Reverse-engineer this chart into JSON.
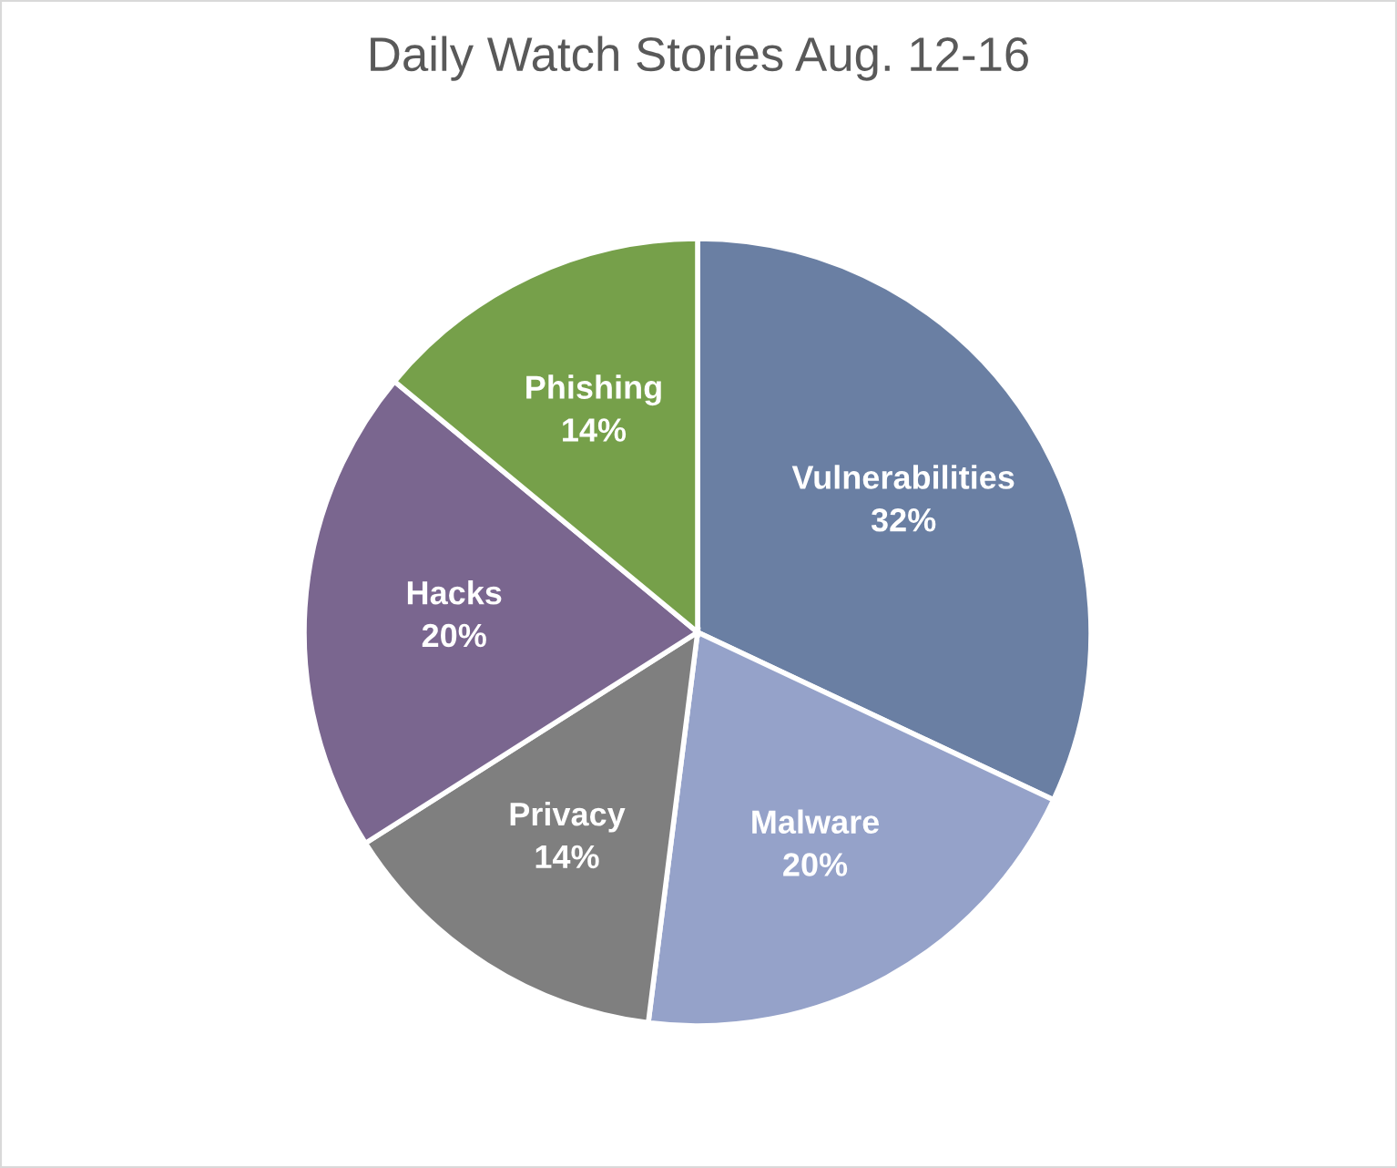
{
  "chart_data": {
    "type": "pie",
    "title": "Daily Watch Stories Aug. 12-16",
    "categories": [
      "Vulnerabilities",
      "Malware",
      "Privacy",
      "Hacks",
      "Phishing"
    ],
    "values": [
      32,
      20,
      14,
      20,
      14
    ],
    "value_labels": [
      "32%",
      "20%",
      "14%",
      "20%",
      "14%"
    ],
    "colors": [
      "#6a7fa3",
      "#95a2c9",
      "#7f7f7f",
      "#7a668f",
      "#76a04a"
    ],
    "legend": false
  }
}
